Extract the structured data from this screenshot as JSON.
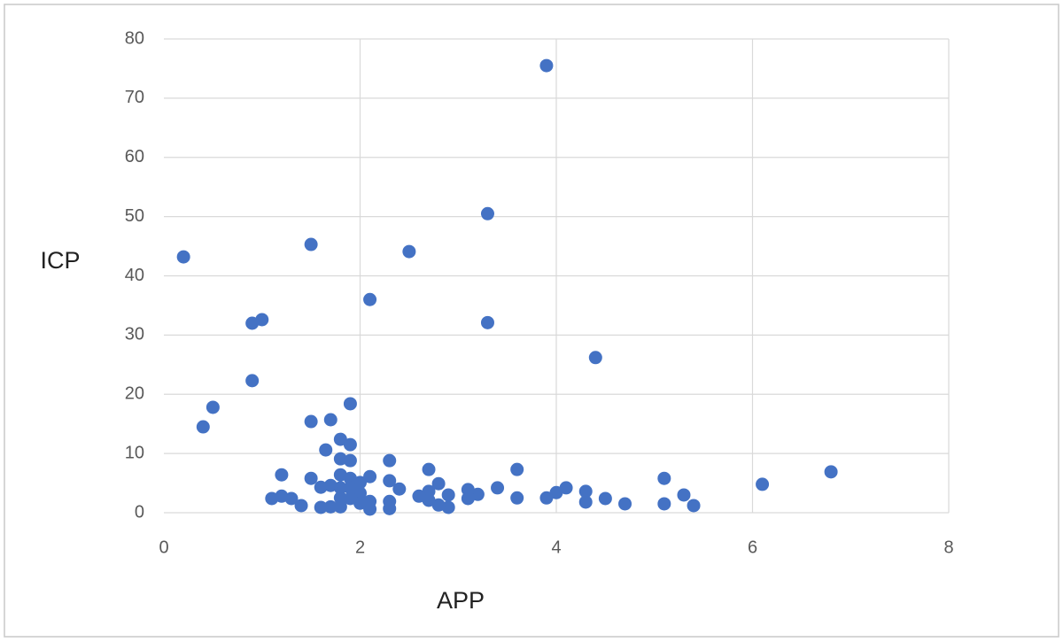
{
  "chart_data": {
    "type": "scatter",
    "x_label": "APP",
    "y_label": "ICP",
    "color": "#4472c4",
    "grid": true,
    "xlim": [
      0,
      8
    ],
    "xticks": [
      0,
      2,
      4,
      6,
      8
    ],
    "ylim": [
      0,
      80
    ],
    "yticks": [
      0,
      10,
      20,
      30,
      40,
      50,
      60,
      70,
      80
    ],
    "x": [
      0.2,
      0.4,
      0.5,
      0.9,
      1.0,
      0.9,
      1.5,
      1.5,
      1.7,
      1.9,
      1.65,
      1.8,
      1.9,
      1.8,
      1.9,
      2.1,
      2.5,
      3.3,
      3.3,
      3.9,
      4.4,
      2.3,
      2.7,
      3.6,
      5.1,
      6.8,
      6.1,
      5.3,
      5.4,
      5.1,
      4.7,
      4.5,
      4.3,
      4.3,
      4.1,
      4.0,
      3.9,
      3.6,
      3.4,
      3.2,
      3.1,
      3.1,
      2.9,
      2.9,
      2.8,
      2.7,
      2.7,
      2.8,
      2.6,
      2.4,
      2.3,
      2.3,
      2.3,
      2.1,
      2.1,
      2.1,
      2.0,
      2.0,
      2.0,
      1.9,
      1.9,
      1.9,
      1.8,
      1.8,
      1.8,
      1.8,
      1.7,
      1.7,
      1.6,
      1.6,
      1.5,
      1.4,
      1.3,
      1.2,
      1.2,
      1.1
    ],
    "values": [
      43.2,
      14.5,
      17.8,
      32,
      32.6,
      22.3,
      45.3,
      15.4,
      15.7,
      18.4,
      10.6,
      12.4,
      11.5,
      9.1,
      8.8,
      36,
      44.1,
      50.5,
      32.1,
      75.5,
      26.2,
      8.8,
      7.3,
      7.3,
      5.8,
      6.9,
      4.8,
      3,
      1.2,
      1.5,
      1.5,
      2.4,
      3.6,
      1.8,
      4.2,
      3.4,
      2.5,
      2.5,
      4.2,
      3.1,
      3.9,
      2.4,
      3,
      0.9,
      4.9,
      3.6,
      2.1,
      1.3,
      2.8,
      4,
      5.4,
      1.9,
      0.7,
      6.1,
      1.9,
      0.6,
      5.1,
      3.3,
      1.6,
      5.8,
      4.2,
      2.4,
      6.4,
      4.2,
      2.5,
      1.0,
      4.6,
      1.0,
      4.3,
      0.9,
      5.8,
      1.2,
      2.4,
      6.4,
      2.8,
      2.4
    ]
  }
}
